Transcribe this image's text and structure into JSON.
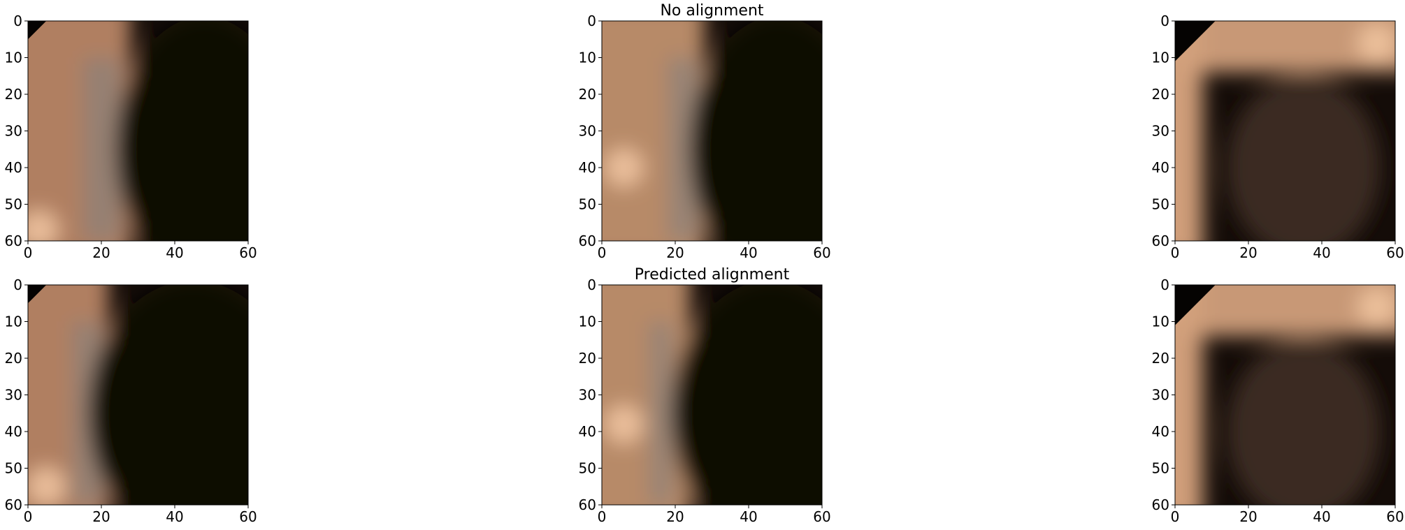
{
  "figure": {
    "titles": {
      "row_0": "No alignment",
      "row_1": "Predicted alignment"
    }
  },
  "chart_data": [
    {
      "type": "heatmap",
      "row": 0,
      "col": 0,
      "title": "",
      "xlim": [
        0,
        60
      ],
      "ylim": [
        60,
        0
      ],
      "xticks": [
        0,
        20,
        40,
        60
      ],
      "yticks": [
        0,
        10,
        20,
        30,
        40,
        50,
        60
      ],
      "grid": false,
      "image": {
        "dark_corner": "top-left",
        "dark_corner_extent": 5,
        "skin_hue": "#b88566",
        "gray_band_center_x": 20,
        "gray_band_width": 10,
        "dark_region_start_x": 28,
        "highlight": {
          "x": 3,
          "y": 57
        }
      }
    },
    {
      "type": "heatmap",
      "row": 0,
      "col": 1,
      "title": "No alignment",
      "xlim": [
        0,
        60
      ],
      "ylim": [
        60,
        0
      ],
      "xticks": [
        0,
        20,
        40,
        60
      ],
      "yticks": [
        0,
        10,
        20,
        30,
        40,
        50,
        60
      ],
      "grid": false,
      "image": {
        "dark_corner": "none",
        "dark_corner_extent": 0,
        "skin_hue": "#c0906e",
        "gray_band_center_x": 22,
        "gray_band_width": 8,
        "dark_region_start_x": 28,
        "highlight": {
          "x": 6,
          "y": 40
        }
      }
    },
    {
      "type": "heatmap",
      "row": 0,
      "col": 2,
      "title": "",
      "xlim": [
        0,
        60
      ],
      "ylim": [
        60,
        0
      ],
      "xticks": [
        0,
        20,
        40,
        60
      ],
      "yticks": [
        0,
        10,
        20,
        30,
        40,
        50,
        60
      ],
      "grid": false,
      "image": {
        "dark_corner": "top-left",
        "dark_corner_extent": 11,
        "skin_hue": "#d2a07c",
        "gray_band_center_x": 10,
        "gray_band_width": 6,
        "dark_region_start_x": 6,
        "highlight": {
          "x": 55,
          "y": 6
        }
      }
    },
    {
      "type": "heatmap",
      "row": 1,
      "col": 0,
      "title": "",
      "xlim": [
        0,
        60
      ],
      "ylim": [
        60,
        0
      ],
      "xticks": [
        0,
        20,
        40,
        60
      ],
      "yticks": [
        0,
        10,
        20,
        30,
        40,
        50,
        60
      ],
      "grid": false,
      "image": {
        "dark_corner": "top-left",
        "dark_corner_extent": 5,
        "skin_hue": "#b88566",
        "gray_band_center_x": 16,
        "gray_band_width": 8,
        "dark_region_start_x": 22,
        "highlight": {
          "x": 5,
          "y": 55
        }
      }
    },
    {
      "type": "heatmap",
      "row": 1,
      "col": 1,
      "title": "Predicted alignment",
      "xlim": [
        0,
        60
      ],
      "ylim": [
        60,
        0
      ],
      "xticks": [
        0,
        20,
        40,
        60
      ],
      "yticks": [
        0,
        10,
        20,
        30,
        40,
        50,
        60
      ],
      "grid": false,
      "image": {
        "dark_corner": "none",
        "dark_corner_extent": 0,
        "skin_hue": "#c0906e",
        "gray_band_center_x": 16,
        "gray_band_width": 6,
        "dark_region_start_x": 24,
        "highlight": {
          "x": 6,
          "y": 38
        }
      }
    },
    {
      "type": "heatmap",
      "row": 1,
      "col": 2,
      "title": "",
      "xlim": [
        0,
        60
      ],
      "ylim": [
        60,
        0
      ],
      "xticks": [
        0,
        20,
        40,
        60
      ],
      "yticks": [
        0,
        10,
        20,
        30,
        40,
        50,
        60
      ],
      "grid": false,
      "image": {
        "dark_corner": "top-left",
        "dark_corner_extent": 11,
        "skin_hue": "#d2a07c",
        "gray_band_center_x": 10,
        "gray_band_width": 6,
        "dark_region_start_x": 6,
        "highlight": {
          "x": 55,
          "y": 6
        }
      }
    }
  ]
}
